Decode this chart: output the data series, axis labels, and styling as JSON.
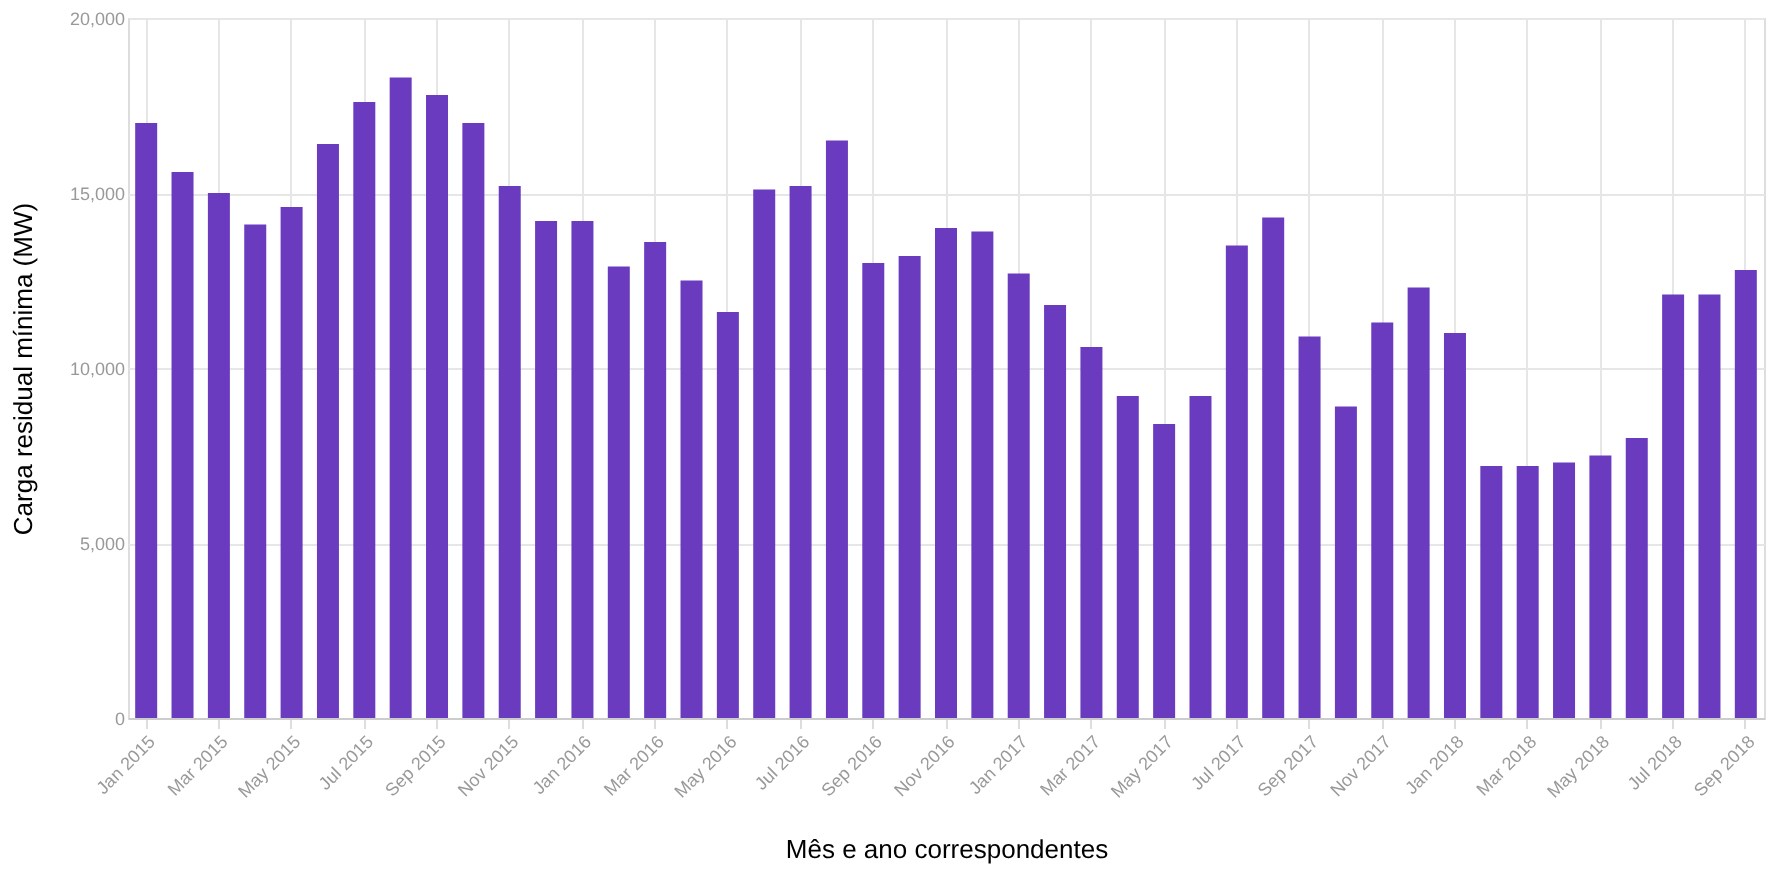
{
  "chart_data": {
    "type": "bar",
    "xlabel": "Mês e ano correspondentes",
    "ylabel": "Carga residual mínima (MW)",
    "categories": [
      "Jan 2015",
      null,
      "Mar 2015",
      null,
      "May 2015",
      null,
      "Jul 2015",
      null,
      "Sep 2015",
      null,
      "Nov 2015",
      null,
      "Jan 2016",
      null,
      "Mar 2016",
      null,
      "May 2016",
      null,
      "Jul 2016",
      null,
      "Sep 2016",
      null,
      "Nov 2016",
      null,
      "Jan 2017",
      null,
      "Mar 2017",
      null,
      "May 2017",
      null,
      "Jul 2017",
      null,
      "Sep 2017",
      null,
      "Nov 2017",
      null,
      "Jan 2018",
      null,
      "Mar 2018",
      null,
      "May 2018",
      null,
      "Jul 2018",
      null,
      "Sep 2018"
    ],
    "series": [
      {
        "color": "#6a3bbf",
        "values": [
          17000,
          15600,
          15000,
          14100,
          14600,
          16400,
          17600,
          18300,
          17800,
          17000,
          15200,
          14200,
          14200,
          12900,
          13600,
          12500,
          11600,
          15100,
          15200,
          16500,
          13000,
          13200,
          14000,
          13900,
          12700,
          11800,
          10600,
          9200,
          8400,
          9200,
          13500,
          14300,
          10900,
          8900,
          11300,
          12300,
          11000,
          7200,
          7200,
          7300,
          7500,
          8000,
          12100,
          12100,
          12800
        ]
      }
    ],
    "ylim": [
      0,
      20000
    ],
    "yticks": [
      {
        "value": 0,
        "label": "0"
      },
      {
        "value": 5000,
        "label": "5,000"
      },
      {
        "value": 10000,
        "label": "10,000"
      },
      {
        "value": 15000,
        "label": "15,000"
      },
      {
        "value": 20000,
        "label": "20,000"
      }
    ],
    "grid": true,
    "legend": false
  }
}
